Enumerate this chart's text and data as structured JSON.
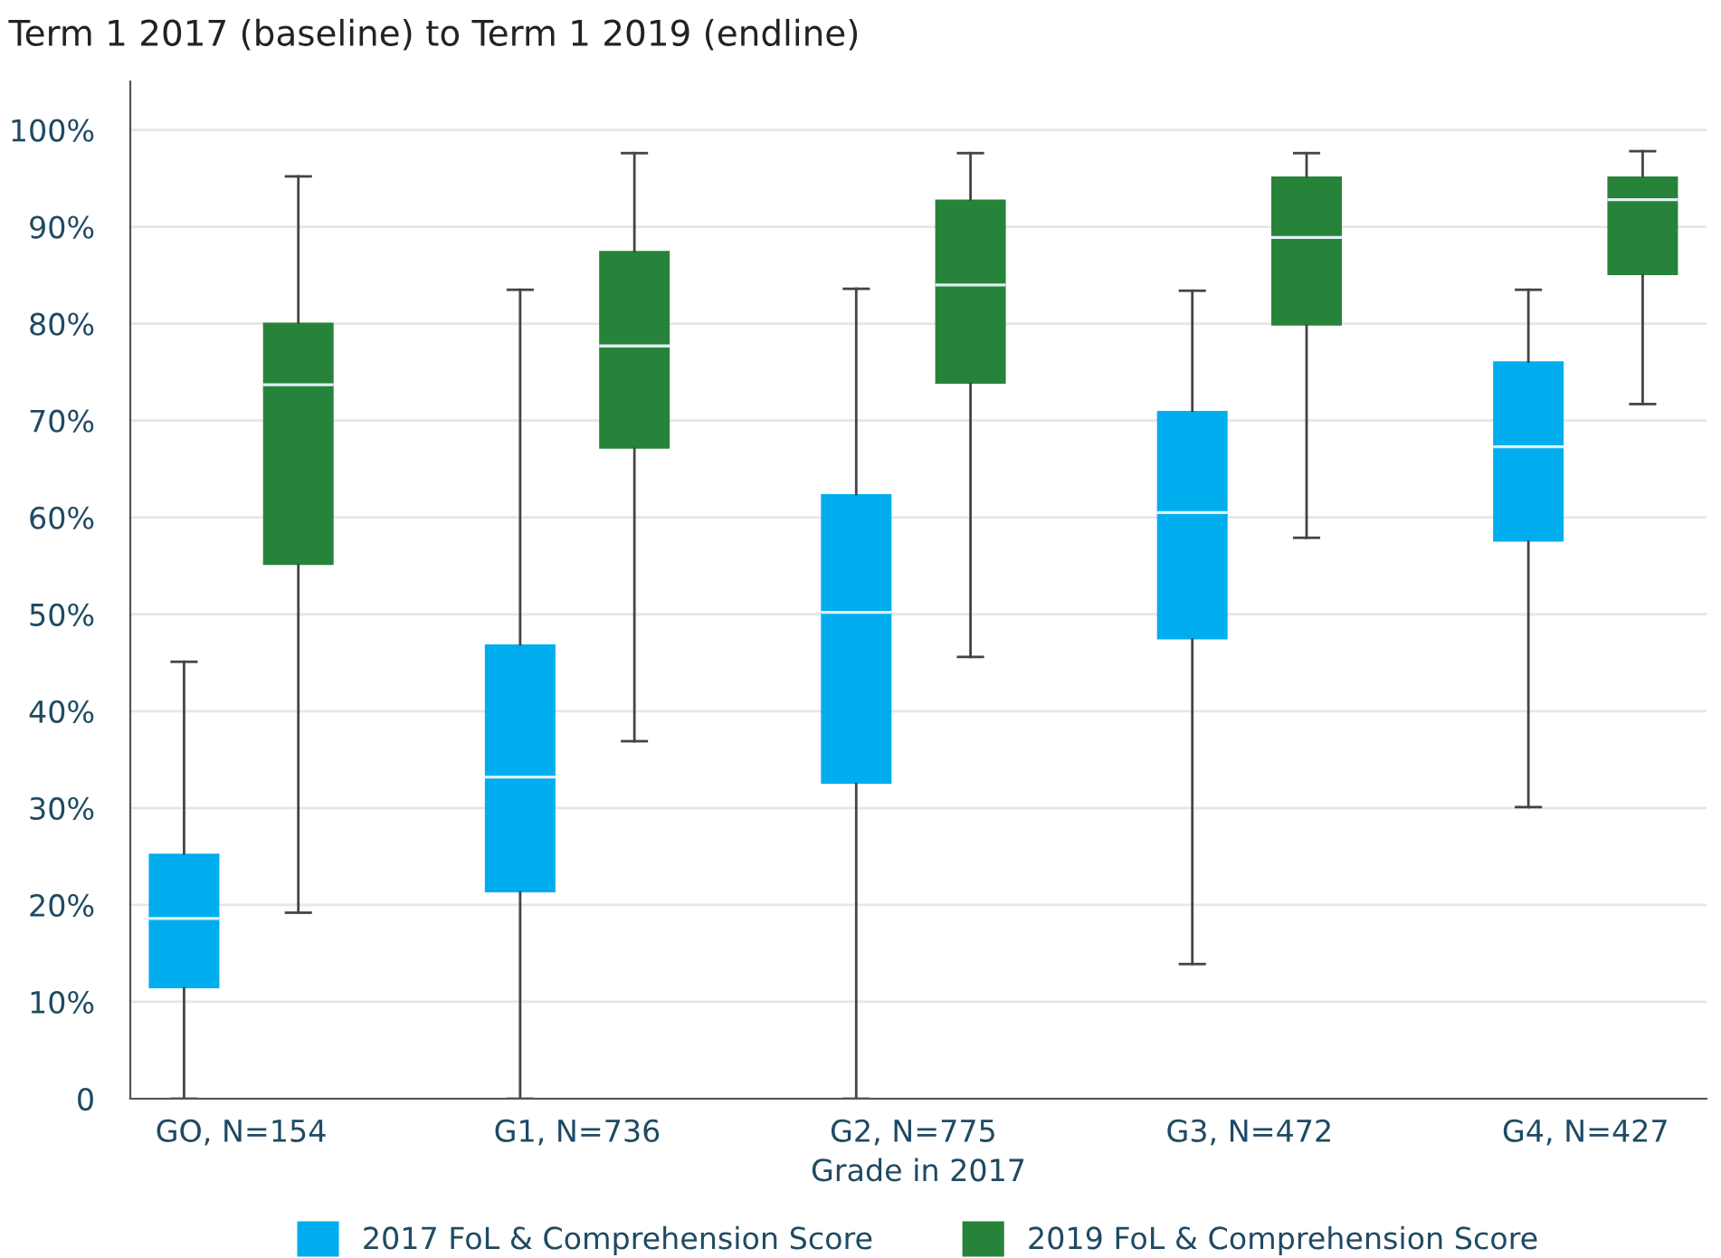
{
  "chart_data": {
    "type": "box",
    "title": "Term 1 2017 (baseline) to Term 1 2019 (endline)",
    "xlabel": "Grade in 2017",
    "categories": [
      "GO, N=154",
      "G1, N=736",
      "G2, N=775",
      "G3, N=472",
      "G4, N=427"
    ],
    "series": [
      {
        "name": "2017 FoL & Comprehension Score",
        "color": "#00adef",
        "boxes": [
          {
            "low": 0,
            "q1": 11.4,
            "median": 18.6,
            "q3": 25.3,
            "high": 45.1
          },
          {
            "low": 0,
            "q1": 21.3,
            "median": 33.2,
            "q3": 46.9,
            "high": 83.5
          },
          {
            "low": 0,
            "q1": 32.5,
            "median": 50.2,
            "q3": 62.4,
            "high": 83.6
          },
          {
            "low": 13.9,
            "q1": 47.4,
            "median": 60.5,
            "q3": 71.0,
            "high": 83.4
          },
          {
            "low": 30.1,
            "q1": 57.5,
            "median": 67.3,
            "q3": 76.1,
            "high": 83.5
          }
        ]
      },
      {
        "name": "2019 FoL & Comprehension Score",
        "color": "#278339",
        "boxes": [
          {
            "low": 19.2,
            "q1": 55.1,
            "median": 73.7,
            "q3": 80.1,
            "high": 95.2
          },
          {
            "low": 36.9,
            "q1": 67.1,
            "median": 77.7,
            "q3": 87.5,
            "high": 97.6
          },
          {
            "low": 45.6,
            "q1": 73.8,
            "median": 84.0,
            "q3": 92.8,
            "high": 97.6
          },
          {
            "low": 57.9,
            "q1": 79.8,
            "median": 88.9,
            "q3": 95.2,
            "high": 97.6
          },
          {
            "low": 71.7,
            "q1": 85.0,
            "median": 92.8,
            "q3": 95.2,
            "high": 97.8
          }
        ]
      }
    ],
    "ylim": [
      0,
      105
    ],
    "yticks": [
      {
        "value": 0,
        "label": "0"
      },
      {
        "value": 10,
        "label": "10%"
      },
      {
        "value": 20,
        "label": "20%"
      },
      {
        "value": 30,
        "label": "30%"
      },
      {
        "value": 40,
        "label": "40%"
      },
      {
        "value": 50,
        "label": "50%"
      },
      {
        "value": 60,
        "label": "60%"
      },
      {
        "value": 70,
        "label": "70%"
      },
      {
        "value": 80,
        "label": "80%"
      },
      {
        "value": 90,
        "label": "90%"
      },
      {
        "value": 100,
        "label": "100%"
      }
    ],
    "grid": "y",
    "legend": "bottom"
  }
}
